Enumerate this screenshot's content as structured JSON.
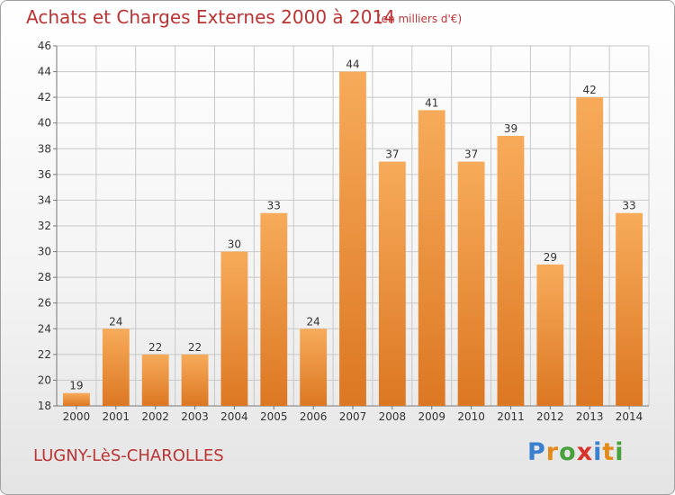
{
  "header": {
    "title": "Achats et Charges Externes 2000 à 2014",
    "subtitle": "(en milliers d'€)"
  },
  "footer": {
    "location": "LUGNY-LèS-CHAROLLES",
    "brand_letters": [
      {
        "char": "P",
        "color": "#3b7fd0"
      },
      {
        "char": "r",
        "color": "#e48a1a"
      },
      {
        "char": "o",
        "color": "#47a23c"
      },
      {
        "char": "x",
        "color": "#d8322c"
      },
      {
        "char": "i",
        "color": "#3b7fd0"
      },
      {
        "char": "t",
        "color": "#e48a1a"
      },
      {
        "char": "i",
        "color": "#47a23c"
      }
    ]
  },
  "chart_data": {
    "type": "bar",
    "title": "Achats et Charges Externes 2000 à 2014",
    "subtitle": "(en milliers d'€)",
    "categories": [
      "2000",
      "2001",
      "2002",
      "2003",
      "2004",
      "2005",
      "2006",
      "2007",
      "2008",
      "2009",
      "2010",
      "2011",
      "2012",
      "2013",
      "2014"
    ],
    "values": [
      19,
      24,
      22,
      22,
      30,
      33,
      24,
      44,
      37,
      41,
      37,
      39,
      29,
      42,
      33
    ],
    "value_labels": [
      "19",
      "24",
      "22",
      "22",
      "30",
      "33",
      "24",
      "44",
      "37",
      "41",
      "37",
      "39",
      "29",
      "42",
      "33"
    ],
    "ylim": [
      18,
      46
    ],
    "yticks": [
      18,
      20,
      22,
      24,
      26,
      28,
      30,
      32,
      34,
      36,
      38,
      40,
      42,
      44,
      46
    ],
    "ytick_labels": [
      "18",
      "20",
      "22",
      "24",
      "26",
      "28",
      "30",
      "32",
      "34",
      "36",
      "38",
      "40",
      "42",
      "44",
      "46"
    ],
    "grid": true,
    "colors": {
      "bar_light": "#f7ab5a",
      "bar_dark": "#dc7722",
      "grid": "#c8c8c8"
    }
  }
}
